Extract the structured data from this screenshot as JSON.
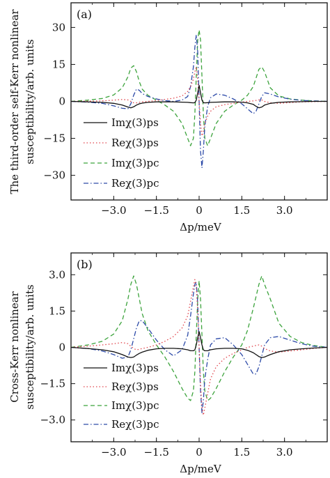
{
  "chart_data": [
    {
      "type": "line",
      "panel_label": "(a)",
      "xlabel": "Δp/meV",
      "ylabel_lines": [
        "The third-order self-Kerr nonlinear",
        "susceptibility/arb. units"
      ],
      "xlim": [
        -4.5,
        4.5
      ],
      "ylim": [
        -40,
        40
      ],
      "xticks": [
        -3.0,
        -1.5,
        0,
        1.5,
        3.0
      ],
      "xtick_labels": [
        "−3.0",
        "−1.5",
        "0",
        "1.5",
        "3.0"
      ],
      "yticks": [
        30,
        15,
        0,
        -15,
        -30
      ],
      "ytick_labels": [
        "30",
        "15",
        "0",
        "−15",
        "−30"
      ],
      "legend_position": "lower-left",
      "x": [
        -4.5,
        -3.9,
        -3.4,
        -3.0,
        -2.7,
        -2.5,
        -2.4,
        -2.3,
        -2.2,
        -2.1,
        -2.0,
        -1.8,
        -1.5,
        -1.2,
        -0.9,
        -0.6,
        -0.4,
        -0.3,
        -0.2,
        -0.15,
        -0.1,
        -0.05,
        0.0,
        0.05,
        0.1,
        0.15,
        0.2,
        0.3,
        0.4,
        0.6,
        0.9,
        1.2,
        1.5,
        1.7,
        1.9,
        2.0,
        2.1,
        2.2,
        2.3,
        2.5,
        2.8,
        3.2,
        3.6,
        4.0,
        4.5
      ],
      "series": [
        {
          "name": "Imχ(3)ps",
          "color": "#111111",
          "dash": "solid",
          "values": [
            0.0,
            -0.2,
            -0.4,
            -0.8,
            -1.5,
            -2.3,
            -2.6,
            -2.2,
            -1.5,
            -1.0,
            -0.7,
            -0.4,
            -0.2,
            -0.2,
            -0.2,
            -0.3,
            -0.4,
            -0.5,
            -0.6,
            -0.5,
            0.5,
            3.5,
            6.5,
            3.5,
            0.5,
            -0.5,
            -0.6,
            -0.5,
            -0.4,
            -0.3,
            -0.2,
            -0.2,
            -0.3,
            -0.6,
            -1.2,
            -2.0,
            -2.6,
            -2.3,
            -1.5,
            -0.8,
            -0.4,
            -0.2,
            -0.1,
            0.0,
            0.0
          ]
        },
        {
          "name": "Reχ(3)ps",
          "color": "#e0424a",
          "dash": "dot",
          "values": [
            0.0,
            0.1,
            0.2,
            0.5,
            0.8,
            0.6,
            0.0,
            -0.6,
            -0.6,
            -0.4,
            -0.2,
            0.0,
            0.3,
            0.8,
            1.3,
            2.2,
            4.0,
            6.0,
            9.0,
            12.0,
            14.0,
            9.0,
            0.0,
            -9.0,
            -14.0,
            -12.0,
            -9.0,
            -6.0,
            -4.0,
            -2.2,
            -1.3,
            -0.8,
            -0.3,
            0.0,
            0.2,
            0.4,
            0.6,
            0.6,
            0.0,
            -0.6,
            -0.8,
            -0.5,
            -0.2,
            -0.1,
            0.0
          ]
        },
        {
          "name": "Imχ(3)pc",
          "color": "#3ca33c",
          "dash": "dash",
          "values": [
            0.0,
            0.5,
            1.2,
            2.6,
            5.5,
            10.0,
            13.5,
            14.5,
            12.0,
            8.0,
            5.0,
            2.5,
            0.5,
            -1.5,
            -4.0,
            -9.0,
            -15.0,
            -18.0,
            -15.0,
            -5.0,
            10.0,
            25.0,
            29.0,
            25.0,
            10.0,
            -5.0,
            -15.0,
            -18.0,
            -15.0,
            -9.0,
            -4.0,
            -1.5,
            0.5,
            2.5,
            6.0,
            9.5,
            13.0,
            14.0,
            12.0,
            5.5,
            2.2,
            1.0,
            0.5,
            0.2,
            0.0
          ]
        },
        {
          "name": "Reχ(3)pc",
          "color": "#2c4aa8",
          "dash": "dashdot",
          "values": [
            0.0,
            -0.3,
            -0.8,
            -1.8,
            -2.8,
            -3.0,
            -1.0,
            2.5,
            5.0,
            4.5,
            3.2,
            2.0,
            1.0,
            0.3,
            0.0,
            0.5,
            2.0,
            6.0,
            14.0,
            22.0,
            27.0,
            20.0,
            0.0,
            -20.0,
            -27.0,
            -20.0,
            -10.0,
            -2.0,
            1.5,
            3.0,
            2.5,
            1.0,
            -1.0,
            -3.0,
            -5.0,
            -4.0,
            -1.0,
            2.0,
            3.5,
            3.0,
            1.8,
            0.9,
            0.4,
            0.2,
            0.0
          ]
        }
      ]
    },
    {
      "type": "line",
      "panel_label": "(b)",
      "xlabel": "Δp/meV",
      "ylabel_lines": [
        "Cross-Kerr nonlinear",
        "susceptibility/arb. units"
      ],
      "xlim": [
        -4.5,
        4.5
      ],
      "ylim": [
        -3.9,
        3.9
      ],
      "xticks": [
        -3.0,
        -1.5,
        0,
        1.5,
        3.0
      ],
      "xtick_labels": [
        "−3.0",
        "−1.5",
        "0",
        "1.5",
        "3.0"
      ],
      "yticks": [
        3.0,
        1.5,
        0,
        -1.5,
        -3.0
      ],
      "ytick_labels": [
        "3.0",
        "1.5",
        "0",
        "−1.5",
        "−3.0"
      ],
      "legend_position": "lower-left",
      "x": [
        -4.5,
        -3.9,
        -3.4,
        -3.0,
        -2.7,
        -2.5,
        -2.4,
        -2.3,
        -2.2,
        -2.1,
        -2.0,
        -1.8,
        -1.5,
        -1.2,
        -0.9,
        -0.6,
        -0.4,
        -0.3,
        -0.2,
        -0.15,
        -0.1,
        -0.05,
        0.0,
        0.05,
        0.1,
        0.15,
        0.2,
        0.3,
        0.4,
        0.6,
        0.9,
        1.2,
        1.5,
        1.7,
        1.9,
        2.0,
        2.1,
        2.2,
        2.3,
        2.5,
        2.8,
        3.2,
        3.6,
        4.0,
        4.5
      ],
      "series": [
        {
          "name": "Imχ(3)ps",
          "color": "#111111",
          "dash": "solid",
          "values": [
            0.0,
            -0.05,
            -0.1,
            -0.18,
            -0.3,
            -0.4,
            -0.42,
            -0.4,
            -0.32,
            -0.25,
            -0.2,
            -0.12,
            -0.06,
            -0.04,
            -0.04,
            -0.06,
            -0.1,
            -0.14,
            -0.14,
            -0.1,
            0.1,
            0.4,
            0.65,
            0.4,
            0.1,
            -0.1,
            -0.14,
            -0.14,
            -0.1,
            -0.06,
            -0.04,
            -0.04,
            -0.06,
            -0.12,
            -0.22,
            -0.3,
            -0.38,
            -0.42,
            -0.4,
            -0.3,
            -0.18,
            -0.1,
            -0.06,
            -0.03,
            0.0
          ]
        },
        {
          "name": "Reχ(3)ps",
          "color": "#e0424a",
          "dash": "dot",
          "values": [
            0.0,
            0.05,
            0.1,
            0.15,
            0.2,
            0.15,
            0.05,
            -0.05,
            -0.1,
            -0.08,
            -0.05,
            0.0,
            0.1,
            0.25,
            0.45,
            0.8,
            1.3,
            1.9,
            2.5,
            2.8,
            2.5,
            1.5,
            0.0,
            -1.5,
            -2.5,
            -2.8,
            -2.5,
            -1.9,
            -1.3,
            -0.8,
            -0.45,
            -0.25,
            -0.1,
            0.0,
            0.05,
            0.08,
            0.1,
            0.05,
            -0.05,
            -0.15,
            -0.2,
            -0.15,
            -0.1,
            -0.05,
            0.0
          ]
        },
        {
          "name": "Imχ(3)pc",
          "color": "#3ca33c",
          "dash": "dash",
          "values": [
            0.0,
            0.1,
            0.25,
            0.55,
            1.1,
            2.0,
            2.6,
            2.95,
            2.6,
            2.0,
            1.4,
            0.7,
            0.1,
            -0.4,
            -1.0,
            -1.7,
            -2.1,
            -2.2,
            -1.8,
            -1.0,
            0.5,
            2.0,
            2.75,
            2.0,
            0.5,
            -1.0,
            -1.8,
            -2.2,
            -2.1,
            -1.7,
            -1.0,
            -0.4,
            0.1,
            0.7,
            1.6,
            2.1,
            2.6,
            2.95,
            2.6,
            2.0,
            1.0,
            0.45,
            0.2,
            0.08,
            0.0
          ]
        },
        {
          "name": "Reχ(3)pc",
          "color": "#2c4aa8",
          "dash": "dashdot",
          "values": [
            0.0,
            -0.05,
            -0.15,
            -0.3,
            -0.45,
            -0.4,
            -0.1,
            0.35,
            0.8,
            1.1,
            1.1,
            0.8,
            0.3,
            -0.1,
            -0.35,
            -0.1,
            0.5,
            1.3,
            2.2,
            2.6,
            2.7,
            1.8,
            0.0,
            -1.8,
            -2.7,
            -2.2,
            -1.3,
            -0.5,
            0.1,
            0.35,
            0.4,
            0.1,
            -0.3,
            -0.7,
            -1.1,
            -1.1,
            -0.8,
            -0.35,
            0.1,
            0.4,
            0.45,
            0.3,
            0.15,
            0.05,
            0.0
          ]
        }
      ]
    }
  ]
}
